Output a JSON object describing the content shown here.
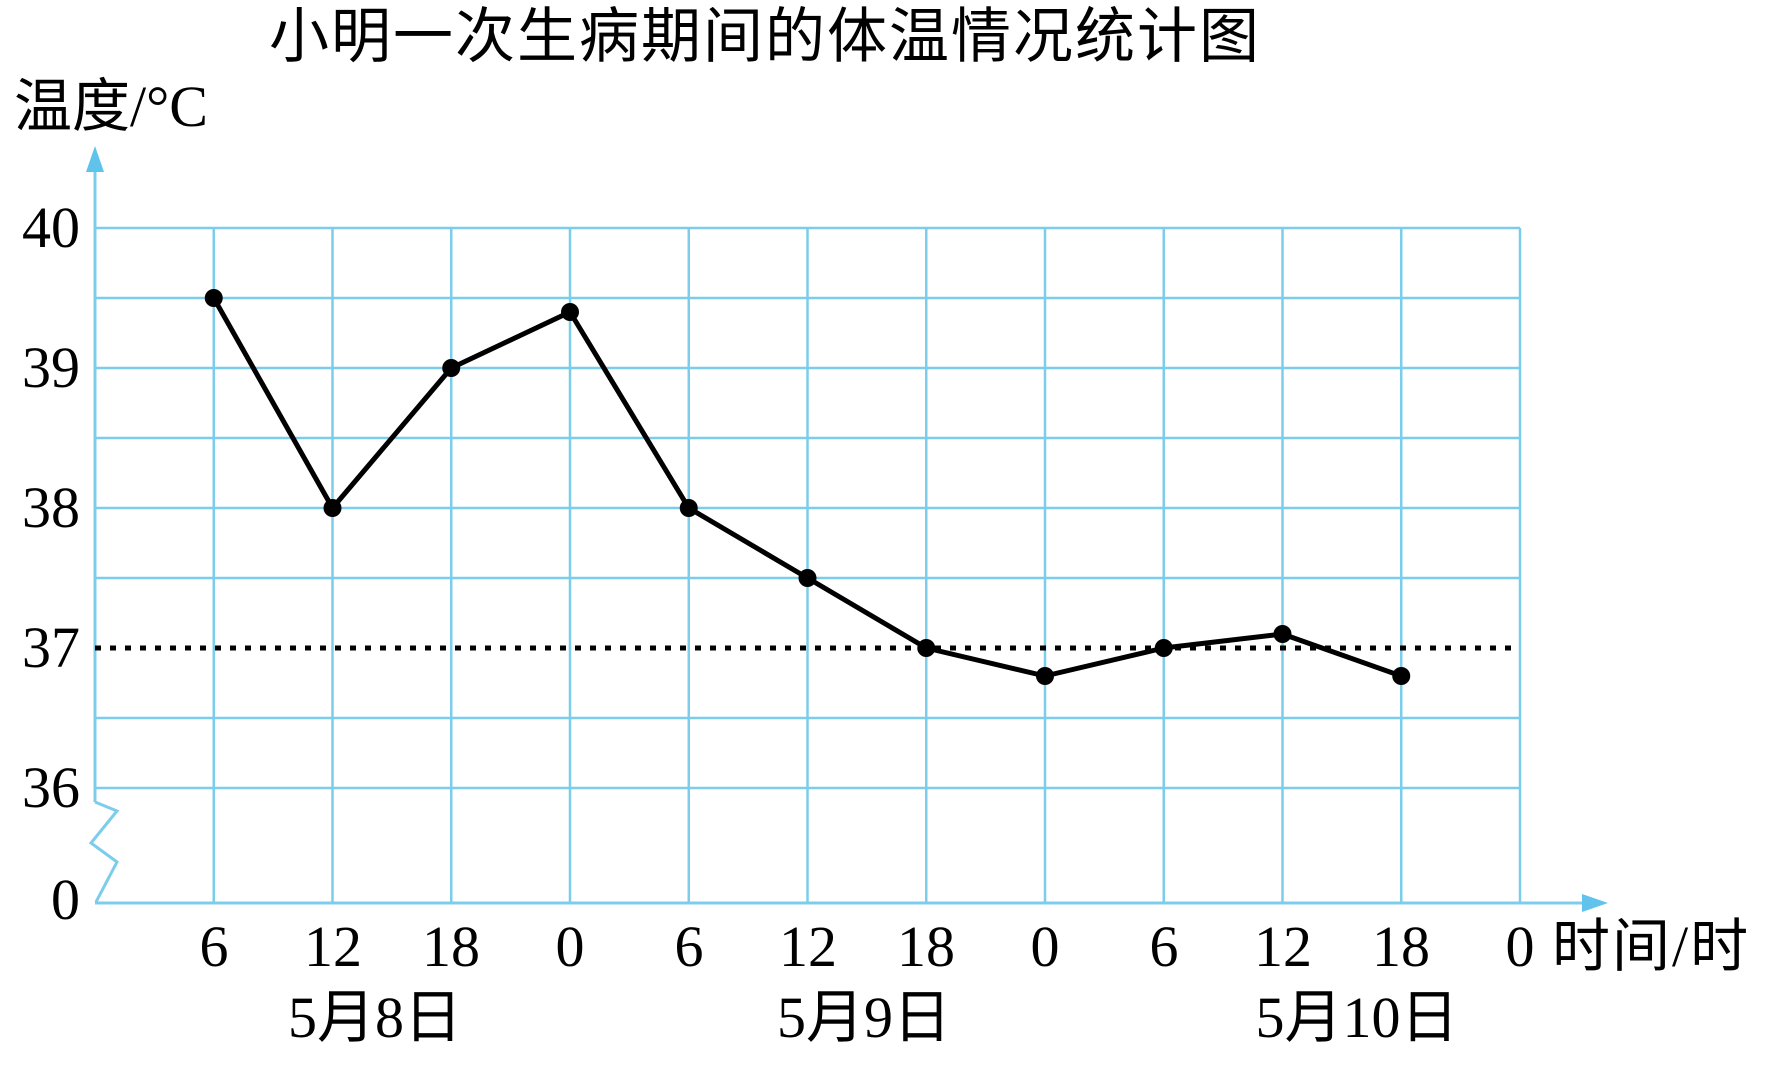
{
  "title": "小明一次生病期间的体温情况统计图",
  "y_axis": {
    "title": "温度/°C",
    "ticks": [
      "40",
      "39",
      "38",
      "37",
      "36",
      "0"
    ]
  },
  "x_axis": {
    "title": "时间/时",
    "ticks": [
      "6",
      "12",
      "18",
      "0",
      "6",
      "12",
      "18",
      "0",
      "6",
      "12",
      "18",
      "0"
    ],
    "dates": [
      "5月8日",
      "5月9日",
      "5月10日"
    ]
  },
  "chart_data": {
    "type": "line",
    "title": "小明一次生病期间的体温情况统计图",
    "xlabel": "时间/时",
    "ylabel": "温度/°C",
    "x_tick_labels": [
      "6",
      "12",
      "18",
      "0",
      "6",
      "12",
      "18",
      "0",
      "6",
      "12",
      "18",
      "0"
    ],
    "date_groups": [
      "5月8日",
      "5月9日",
      "5月10日"
    ],
    "values": [
      39.5,
      38,
      39,
      39.4,
      38,
      37.5,
      37,
      36.8,
      37,
      37.1,
      36.8
    ],
    "points": [
      {
        "date": "5月8日",
        "hour": "6",
        "temp": 39.5
      },
      {
        "date": "5月8日",
        "hour": "12",
        "temp": 38
      },
      {
        "date": "5月8日",
        "hour": "18",
        "temp": 39
      },
      {
        "date": "5月9日",
        "hour": "0",
        "temp": 39.4
      },
      {
        "date": "5月9日",
        "hour": "6",
        "temp": 38
      },
      {
        "date": "5月9日",
        "hour": "12",
        "temp": 37.5
      },
      {
        "date": "5月9日",
        "hour": "18",
        "temp": 37
      },
      {
        "date": "5月10日",
        "hour": "0",
        "temp": 36.8
      },
      {
        "date": "5月10日",
        "hour": "6",
        "temp": 37
      },
      {
        "date": "5月10日",
        "hour": "12",
        "temp": 37.1
      },
      {
        "date": "5月10日",
        "hour": "18",
        "temp": 36.8
      }
    ],
    "y_ticks": [
      40,
      39,
      38,
      37,
      36,
      0
    ],
    "ylim_displayed": [
      36,
      40
    ],
    "y_axis_break_between": [
      0,
      36
    ],
    "grid": {
      "show": true,
      "y_step_deg": 0.5,
      "x_step_hours": 6
    },
    "reference_line": {
      "temp": 37,
      "style": "dotted",
      "color": "#000000"
    },
    "legend": "none",
    "colors": {
      "grid": "#7CCDEC",
      "axis": "#7CCDEC",
      "arrow": "#5FC3EC",
      "series_line": "#000000",
      "series_marker": "#000000",
      "reference": "#000000",
      "text": "#000000",
      "background": "#FFFFFF"
    }
  }
}
